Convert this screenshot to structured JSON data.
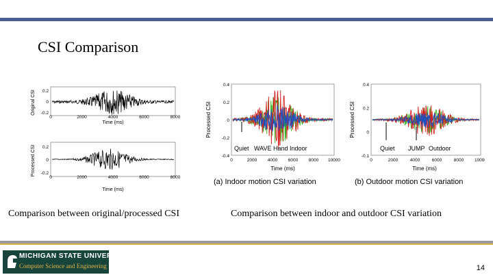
{
  "slide": {
    "title": "CSI Comparison",
    "caption_left": "Comparison between original/processed CSI",
    "caption_right": "Comparison between indoor and  outdoor CSI variation",
    "page_number": "14",
    "logo_name": "MICHIGAN STATE UNIVERSITY",
    "logo_dept": "Computer Science and Engineering"
  },
  "chart_data": [
    {
      "type": "line",
      "ylabel": "Original CSI",
      "xlabel": "Time (ms)",
      "x_ticks": [
        "0",
        "2000",
        "4000",
        "6000",
        "8000"
      ],
      "y_ticks": [
        "0.2",
        "0",
        "-0.2"
      ],
      "xlim": [
        0,
        8000
      ],
      "ylim": [
        -0.3,
        0.3
      ]
    },
    {
      "type": "line",
      "ylabel": "Processed CSI",
      "xlabel": "Time (ms)",
      "x_ticks": [
        "0",
        "2000",
        "4000",
        "6000",
        "8000"
      ],
      "y_ticks": [
        "0.2",
        "0",
        "-0.2"
      ],
      "xlim": [
        0,
        8000
      ],
      "ylim": [
        -0.3,
        0.3
      ]
    },
    {
      "type": "line",
      "ylabel": "Processed CSI",
      "xlabel": "Time (ms)",
      "x_ticks": [
        "0",
        "2000",
        "4000",
        "6000",
        "8000",
        "10000"
      ],
      "y_ticks": [
        "0.4",
        "0.2",
        "0",
        "-0.2",
        "-0.4"
      ],
      "xlim": [
        0,
        10000
      ],
      "ylim": [
        -0.4,
        0.4
      ],
      "annotations": [
        "Quiet",
        "WAVE Hand",
        "Indoor"
      ],
      "caption": "(a)  Indoor motion CSI variation"
    },
    {
      "type": "line",
      "ylabel": "Processed CSI",
      "xlabel": "Time (ms)",
      "x_ticks": [
        "0",
        "2000",
        "4000",
        "6000",
        "8000",
        "10000"
      ],
      "y_ticks": [
        "0.4",
        "0.2",
        "0",
        "-0.1"
      ],
      "xlim": [
        0,
        10000
      ],
      "ylim": [
        -0.1,
        0.4
      ],
      "annotations": [
        "Quiet",
        "JUMP",
        "Outdoor"
      ],
      "caption": "(b)  Outdoor motion CSI variation"
    }
  ],
  "colors": {
    "top_band": "#4a5e92",
    "series_blue": "#1f4fbf",
    "series_red": "#d62020",
    "series_green": "#35b020",
    "series_black": "#000000",
    "msu_green": "#18453b"
  }
}
